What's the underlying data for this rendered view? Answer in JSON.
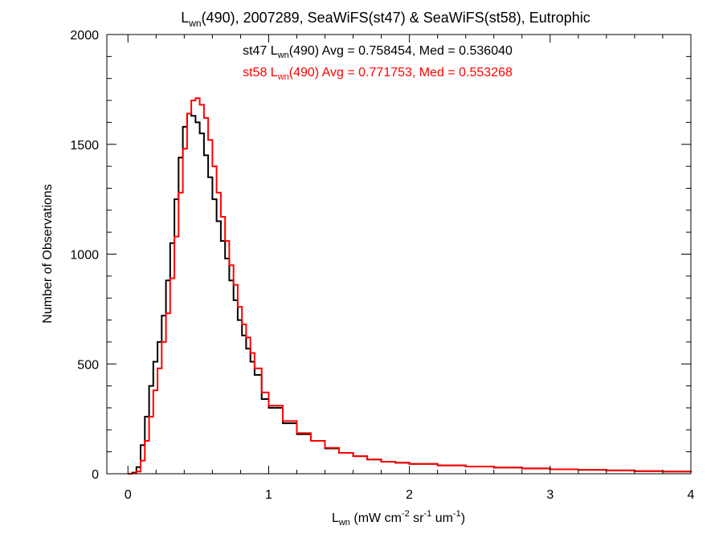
{
  "chart_data": {
    "type": "line",
    "title": {
      "main": "L",
      "sub": "wn",
      "rest": "(490), 2007289, SeaWiFS(st47) & SeaWiFS(st58), Eutrophic"
    },
    "xlabel": {
      "main": "L",
      "sub": "wn",
      "units": [
        {
          "t": " (mW cm",
          "sup": ""
        },
        {
          "t": "",
          "sup": "-2"
        },
        {
          "t": " sr",
          "sup": ""
        },
        {
          "t": "",
          "sup": "-1"
        },
        {
          "t": " um",
          "sup": ""
        },
        {
          "t": "",
          "sup": "-1"
        },
        {
          "t": ")",
          "sup": ""
        }
      ]
    },
    "ylabel": "Number of Observations",
    "xlim": [
      -0.15,
      4.0
    ],
    "ylim": [
      0,
      2000
    ],
    "xticks": [
      "0",
      "1",
      "2",
      "3",
      "4"
    ],
    "yticks": [
      "0",
      "500",
      "1000",
      "1500",
      "2000"
    ],
    "grid": false,
    "series": [
      {
        "name_pre": "st47 L",
        "name_sub": "wn",
        "name_post": "(490) Avg = 0.758454, Med = 0.536040",
        "color": "#000000",
        "points": [
          [
            0.0,
            0
          ],
          [
            0.03,
            5
          ],
          [
            0.06,
            30
          ],
          [
            0.09,
            130
          ],
          [
            0.12,
            260
          ],
          [
            0.15,
            400
          ],
          [
            0.18,
            510
          ],
          [
            0.21,
            600
          ],
          [
            0.24,
            720
          ],
          [
            0.27,
            880
          ],
          [
            0.3,
            1050
          ],
          [
            0.33,
            1250
          ],
          [
            0.36,
            1440
          ],
          [
            0.39,
            1580
          ],
          [
            0.42,
            1640
          ],
          [
            0.45,
            1630
          ],
          [
            0.48,
            1600
          ],
          [
            0.51,
            1550
          ],
          [
            0.54,
            1450
          ],
          [
            0.57,
            1350
          ],
          [
            0.6,
            1250
          ],
          [
            0.63,
            1150
          ],
          [
            0.66,
            1060
          ],
          [
            0.69,
            980
          ],
          [
            0.72,
            880
          ],
          [
            0.75,
            790
          ],
          [
            0.78,
            700
          ],
          [
            0.81,
            630
          ],
          [
            0.84,
            570
          ],
          [
            0.87,
            510
          ],
          [
            0.9,
            450
          ],
          [
            0.95,
            340
          ],
          [
            1.0,
            300
          ],
          [
            1.1,
            230
          ],
          [
            1.2,
            180
          ],
          [
            1.3,
            150
          ],
          [
            1.4,
            115
          ],
          [
            1.5,
            95
          ],
          [
            1.6,
            80
          ],
          [
            1.7,
            65
          ],
          [
            1.8,
            55
          ],
          [
            1.9,
            50
          ],
          [
            2.0,
            45
          ],
          [
            2.2,
            38
          ],
          [
            2.4,
            33
          ],
          [
            2.6,
            28
          ],
          [
            2.8,
            24
          ],
          [
            3.0,
            20
          ],
          [
            3.2,
            18
          ],
          [
            3.4,
            15
          ],
          [
            3.6,
            12
          ],
          [
            3.8,
            10
          ],
          [
            4.0,
            8
          ]
        ]
      },
      {
        "name_pre": "st58 L",
        "name_sub": "wn",
        "name_post": "(490) Avg = 0.771753, Med = 0.553268",
        "color": "#ff0000",
        "points": [
          [
            0.0,
            0
          ],
          [
            0.03,
            2
          ],
          [
            0.06,
            10
          ],
          [
            0.09,
            60
          ],
          [
            0.12,
            150
          ],
          [
            0.15,
            260
          ],
          [
            0.18,
            380
          ],
          [
            0.21,
            480
          ],
          [
            0.24,
            600
          ],
          [
            0.27,
            730
          ],
          [
            0.3,
            890
          ],
          [
            0.33,
            1080
          ],
          [
            0.36,
            1280
          ],
          [
            0.39,
            1480
          ],
          [
            0.42,
            1640
          ],
          [
            0.45,
            1700
          ],
          [
            0.48,
            1710
          ],
          [
            0.51,
            1680
          ],
          [
            0.54,
            1620
          ],
          [
            0.57,
            1520
          ],
          [
            0.6,
            1400
          ],
          [
            0.63,
            1280
          ],
          [
            0.66,
            1170
          ],
          [
            0.69,
            1060
          ],
          [
            0.72,
            950
          ],
          [
            0.75,
            860
          ],
          [
            0.78,
            760
          ],
          [
            0.81,
            680
          ],
          [
            0.84,
            620
          ],
          [
            0.87,
            550
          ],
          [
            0.9,
            480
          ],
          [
            0.95,
            370
          ],
          [
            1.0,
            310
          ],
          [
            1.1,
            240
          ],
          [
            1.2,
            185
          ],
          [
            1.3,
            150
          ],
          [
            1.4,
            118
          ],
          [
            1.5,
            95
          ],
          [
            1.6,
            80
          ],
          [
            1.7,
            65
          ],
          [
            1.8,
            55
          ],
          [
            1.9,
            50
          ],
          [
            2.0,
            45
          ],
          [
            2.2,
            38
          ],
          [
            2.4,
            33
          ],
          [
            2.6,
            28
          ],
          [
            2.8,
            24
          ],
          [
            3.0,
            20
          ],
          [
            3.2,
            18
          ],
          [
            3.4,
            15
          ],
          [
            3.6,
            12
          ],
          [
            3.8,
            10
          ],
          [
            4.0,
            8
          ]
        ]
      }
    ]
  }
}
